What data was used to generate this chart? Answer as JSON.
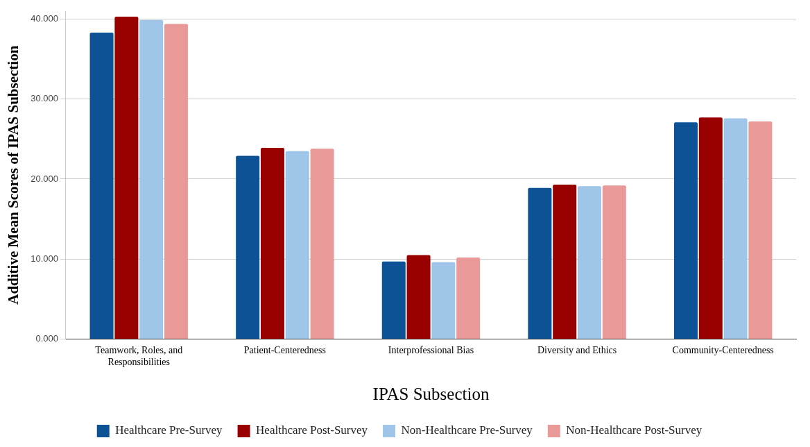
{
  "chart_data": {
    "type": "bar",
    "xlabel": "IPAS Subsection",
    "ylabel": "Additive Mean Scores of IPAS Subsection",
    "categories": [
      "Teamwork, Roles, and Responsibilities",
      "Patient-Centeredness",
      "Interprofessional Bias",
      "Diversity and Ethics",
      "Community-Centeredness"
    ],
    "series": [
      {
        "name": "Healthcare Pre-Survey",
        "color": "#0d5295",
        "values": [
          38.3,
          22.9,
          9.7,
          18.9,
          27.1
        ]
      },
      {
        "name": "Healthcare Post-Survey",
        "color": "#990000",
        "values": [
          40.3,
          23.9,
          10.5,
          19.3,
          27.7
        ]
      },
      {
        "name": "Non-Healthcare Pre-Survey",
        "color": "#9fc5e8",
        "values": [
          39.9,
          23.5,
          9.6,
          19.1,
          27.6
        ]
      },
      {
        "name": "Non-Healthcare Post-Survey",
        "color": "#ea9999",
        "values": [
          39.4,
          23.8,
          10.2,
          19.2,
          27.2
        ]
      }
    ],
    "ylim": [
      0,
      41
    ],
    "yticks": [
      {
        "value": 0,
        "label": "0.000"
      },
      {
        "value": 10,
        "label": "10.000"
      },
      {
        "value": 20,
        "label": "20.000"
      },
      {
        "value": 30,
        "label": "30.000"
      },
      {
        "value": 40,
        "label": "40.000"
      }
    ],
    "grid": "y",
    "legend": "bottom"
  }
}
